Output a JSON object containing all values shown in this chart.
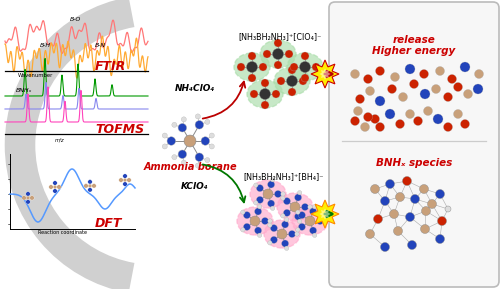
{
  "bg_color": "#ffffff",
  "ftir_label": "FTIR",
  "tofms_label": "TOFMS",
  "dft_label": "DFT",
  "ammonia_label": "Ammonia borane",
  "kclo4_label": "KClO₄",
  "nh4clo4_label": "NH₄ClO₄",
  "top_formula": "[NH₃BH₂NH₃]⁺[BH₄]⁻",
  "bot_formula": "[NH₃BH₂NH₃]⁺[ClO₄]⁻",
  "bnh_label": "BNHₓ species",
  "energy_label1": "Higher energy",
  "energy_label2": "release",
  "bo_label": "B-O",
  "bh_label": "B-H",
  "bn_label": "B-N",
  "bnh_spec_label": "BNHₓ",
  "mz_label": "m/z",
  "wavenumber_label": "Wavenumber",
  "reaction_label": "Reaction coordinate",
  "ftir_color_red": "#ff7777",
  "ftir_color_orange": "#ffaa33",
  "tofms_color_green": "#009900",
  "tofms_color_blue": "#8888ee",
  "tofms_color_pink": "#ff44bb",
  "dft_color_blue": "#5599ff",
  "arrow_green": "#007700",
  "arrow_red": "#bb0000",
  "label_red": "#cc0000",
  "pink_bg": "#ffaacc",
  "green_bg": "#aaddaa",
  "gray_arc": "#d0d0d0",
  "atom_boron": "#c8a07a",
  "atom_nitrogen": "#2244bb",
  "atom_oxygen": "#cc2200",
  "atom_carbon": "#333333",
  "atom_white": "#dddddd"
}
